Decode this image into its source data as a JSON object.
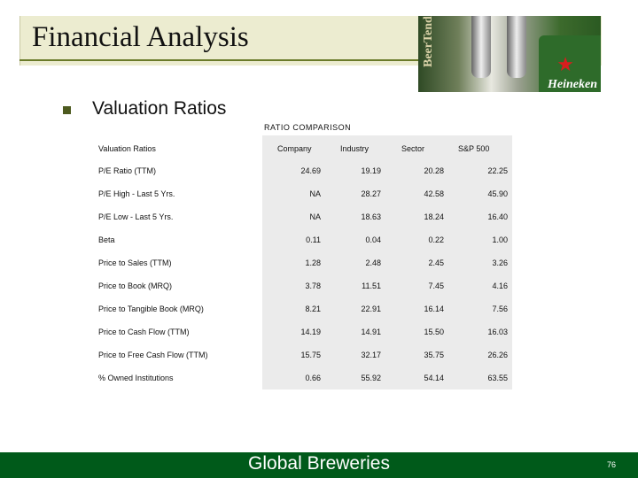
{
  "slide": {
    "title": "Financial Analysis",
    "bullet": "Valuation Ratios",
    "photo_brands": [
      "BeerTender",
      "Heineken"
    ]
  },
  "table": {
    "caption": "RATIO COMPARISON",
    "headers": [
      "Valuation Ratios",
      "Company",
      "Industry",
      "Sector",
      "S&P 500"
    ],
    "rows": [
      [
        "P/E Ratio (TTM)",
        "24.69",
        "19.19",
        "20.28",
        "22.25"
      ],
      [
        "P/E High - Last 5 Yrs.",
        "NA",
        "28.27",
        "42.58",
        "45.90"
      ],
      [
        "P/E Low - Last 5 Yrs.",
        "NA",
        "18.63",
        "18.24",
        "16.40"
      ],
      [
        "Beta",
        "0.11",
        "0.04",
        "0.22",
        "1.00"
      ],
      [
        "Price to Sales (TTM)",
        "1.28",
        "2.48",
        "2.45",
        "3.26"
      ],
      [
        "Price to Book (MRQ)",
        "3.78",
        "11.51",
        "7.45",
        "4.16"
      ],
      [
        "Price to Tangible Book (MRQ)",
        "8.21",
        "22.91",
        "16.14",
        "7.56"
      ],
      [
        "Price to Cash Flow (TTM)",
        "14.19",
        "14.91",
        "15.50",
        "16.03"
      ],
      [
        "Price to Free Cash Flow (TTM)",
        "15.75",
        "32.17",
        "35.75",
        "26.26"
      ],
      [
        "% Owned Institutions",
        "0.66",
        "55.92",
        "54.14",
        "63.55"
      ]
    ]
  },
  "footer": {
    "company": "Global Breweries",
    "page_number": "76"
  },
  "colors": {
    "footer_green": "#005a1a",
    "title_band": "#ececd0",
    "table_shade": "#ebebeb"
  }
}
